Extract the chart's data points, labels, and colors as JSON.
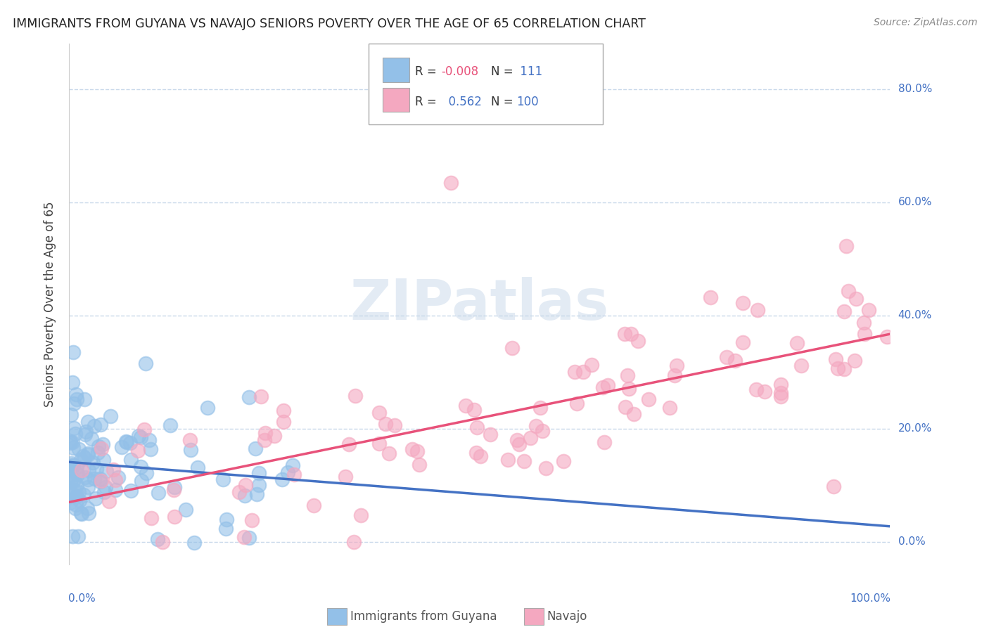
{
  "title": "IMMIGRANTS FROM GUYANA VS NAVAJO SENIORS POVERTY OVER THE AGE OF 65 CORRELATION CHART",
  "source": "Source: ZipAtlas.com",
  "ylabel": "Seniors Poverty Over the Age of 65",
  "xlim": [
    0.0,
    1.0
  ],
  "ylim": [
    -0.04,
    0.88
  ],
  "yticks": [
    0.0,
    0.2,
    0.4,
    0.6,
    0.8
  ],
  "ytick_labels": [
    "0.0%",
    "20.0%",
    "40.0%",
    "60.0%",
    "80.0%"
  ],
  "color_blue": "#93C0E8",
  "color_pink": "#F4A8C0",
  "trend_blue": "#4472C4",
  "trend_pink": "#E8527A",
  "r1_color": "#E8527A",
  "n1_color": "#4472C4",
  "r2_color": "#4472C4",
  "n2_color": "#4472C4",
  "background": "#ffffff",
  "grid_color": "#C8D8EA",
  "seed": 42
}
